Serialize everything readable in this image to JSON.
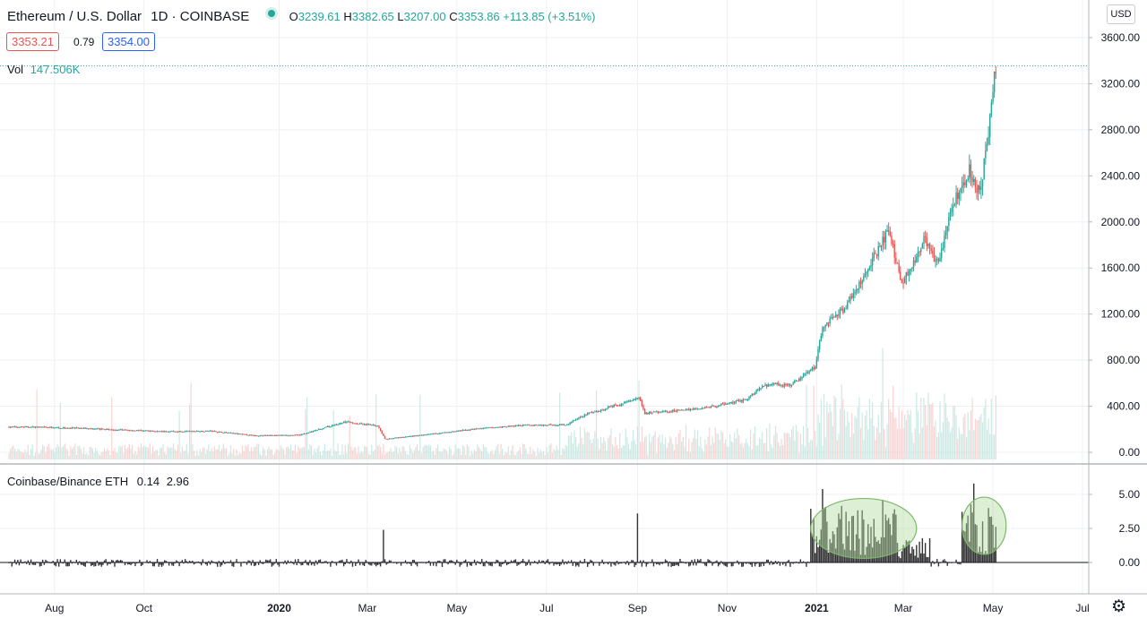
{
  "header": {
    "symbol": "Ethereum / U.S. Dollar",
    "interval": "1D",
    "exchange": "COINBASE",
    "sep": "·",
    "o_label": "O",
    "o": "3239.61",
    "h_label": "H",
    "h": "3382.65",
    "l_label": "L",
    "l": "3207.00",
    "c_label": "C",
    "c": "3353.86",
    "change": "+113.85 (+3.51%)"
  },
  "price_boxes": {
    "bid": "3353.21",
    "spread": "0.79",
    "ask": "3354.00"
  },
  "volume_label": {
    "name": "Vol",
    "value": "147.506K"
  },
  "indicator": {
    "name": "Coinbase/Binance ETH",
    "v1": "0.14",
    "v2": "2.96"
  },
  "currency_button": "USD",
  "colors": {
    "up": "#26a69a",
    "down": "#ef5350",
    "indicator": "#333333",
    "ellipse": "#7cb86a",
    "grid": "#eef0f3"
  },
  "icons": {
    "settings": "gear-icon",
    "live_dot": "status-dot-icon"
  },
  "chart_data": [
    {
      "type": "candlestick",
      "title": "Ethereum / U.S. Dollar",
      "x_ticks": [
        "Aug",
        "Oct",
        "2020",
        "Mar",
        "May",
        "Jul",
        "Sep",
        "Nov",
        "2021",
        "Mar",
        "May",
        "Jul"
      ],
      "y_ticks": [
        "3600.00",
        "3200.00",
        "2800.00",
        "2400.00",
        "2000.00",
        "1600.00",
        "1200.00",
        "800.00",
        "400.00",
        "0.00"
      ],
      "ylim": [
        0,
        3600
      ],
      "x_range": [
        "2019-07",
        "2021-07"
      ],
      "price_path": [
        [
          "2019-07-15",
          220
        ],
        [
          "2019-08-15",
          210
        ],
        [
          "2019-09-15",
          195
        ],
        [
          "2019-10-15",
          180
        ],
        [
          "2019-11-15",
          185
        ],
        [
          "2019-12-15",
          145
        ],
        [
          "2020-01-15",
          150
        ],
        [
          "2020-02-15",
          265
        ],
        [
          "2020-03-08",
          230
        ],
        [
          "2020-03-13",
          115
        ],
        [
          "2020-04-15",
          160
        ],
        [
          "2020-05-15",
          205
        ],
        [
          "2020-06-15",
          235
        ],
        [
          "2020-07-15",
          240
        ],
        [
          "2020-07-28",
          330
        ],
        [
          "2020-08-15",
          400
        ],
        [
          "2020-09-02",
          470
        ],
        [
          "2020-09-06",
          340
        ],
        [
          "2020-10-15",
          380
        ],
        [
          "2020-11-15",
          460
        ],
        [
          "2020-11-25",
          580
        ],
        [
          "2020-12-15",
          590
        ],
        [
          "2020-12-31",
          740
        ],
        [
          "2021-01-05",
          1100
        ],
        [
          "2021-01-20",
          1250
        ],
        [
          "2021-02-05",
          1600
        ],
        [
          "2021-02-19",
          1940
        ],
        [
          "2021-02-28",
          1450
        ],
        [
          "2021-03-15",
          1850
        ],
        [
          "2021-03-25",
          1620
        ],
        [
          "2021-04-02",
          2100
        ],
        [
          "2021-04-15",
          2450
        ],
        [
          "2021-04-22",
          2250
        ],
        [
          "2021-04-28",
          2750
        ],
        [
          "2021-05-03",
          3350
        ]
      ],
      "last_price": "3353.86",
      "volume_last": "147.506K"
    },
    {
      "type": "bar",
      "title": "Coinbase/Binance ETH",
      "y_ticks": [
        "5.00",
        "2.50",
        "0.00"
      ],
      "ylim": [
        -1.0,
        6.0
      ],
      "values_last": [
        0.14,
        2.96
      ],
      "spikes": [
        [
          "2020-03-12",
          2.4
        ],
        [
          "2020-09-01",
          3.6
        ],
        [
          "2021-01-05",
          5.4
        ],
        [
          "2021-02-15",
          4.6
        ],
        [
          "2021-04-18",
          5.8
        ],
        [
          "2021-04-28",
          4.0
        ]
      ],
      "highlight_regions": [
        [
          "2020-12-28",
          "2021-03-10"
        ],
        [
          "2021-04-10",
          "2021-05-10"
        ]
      ]
    }
  ]
}
